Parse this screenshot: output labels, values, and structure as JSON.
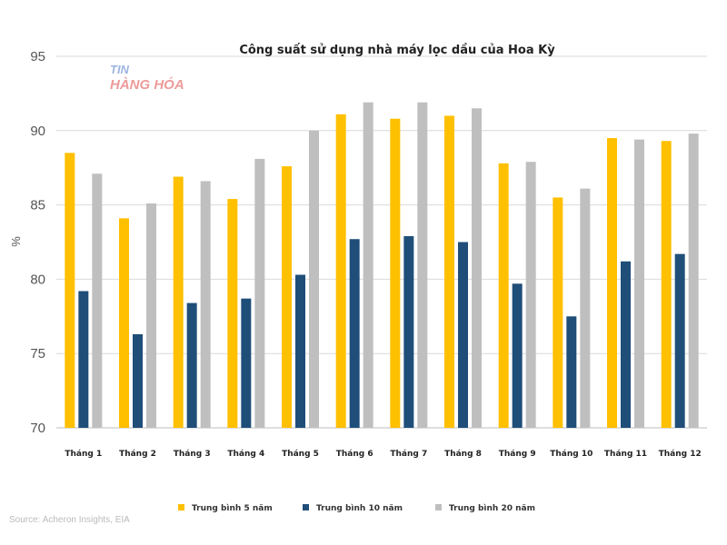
{
  "source": "Source: Acheron Insights, EIA",
  "watermark": {
    "line1": "TIN",
    "line2": "HÀNG HÓA"
  },
  "colors": {
    "grid": "#d9d9d9",
    "axis": "#bfbfbf"
  },
  "chart_data": {
    "type": "bar",
    "title": "Công suất sử dụng nhà máy lọc dầu của Hoa Kỳ",
    "xlabel": "",
    "ylabel": "%",
    "ylim": [
      70,
      95
    ],
    "yticks": [
      70,
      75,
      80,
      85,
      90,
      95
    ],
    "grid": true,
    "legend_position": "bottom",
    "categories": [
      "Tháng 1",
      "Tháng 2",
      "Tháng 3",
      "Tháng 4",
      "Tháng 5",
      "Tháng 6",
      "Tháng 7",
      "Tháng 8",
      "Tháng 9",
      "Tháng  10",
      "Tháng 11",
      "Tháng 12"
    ],
    "series": [
      {
        "name": "Trung bình 5 năm",
        "color": "#ffc000",
        "values": [
          88.5,
          84.1,
          86.9,
          85.4,
          87.6,
          91.1,
          90.8,
          91.0,
          87.8,
          85.5,
          89.5,
          89.3
        ]
      },
      {
        "name": "Trung bình 10 năm",
        "color": "#1f4e79",
        "values": [
          79.2,
          76.3,
          78.4,
          78.7,
          80.3,
          82.7,
          82.9,
          82.5,
          79.7,
          77.5,
          81.2,
          81.7
        ]
      },
      {
        "name": "Trung bình 20 năm",
        "color": "#bfbfbf",
        "values": [
          87.1,
          85.1,
          86.6,
          88.1,
          90.0,
          91.9,
          91.9,
          91.5,
          87.9,
          86.1,
          89.4,
          89.8
        ]
      }
    ]
  }
}
